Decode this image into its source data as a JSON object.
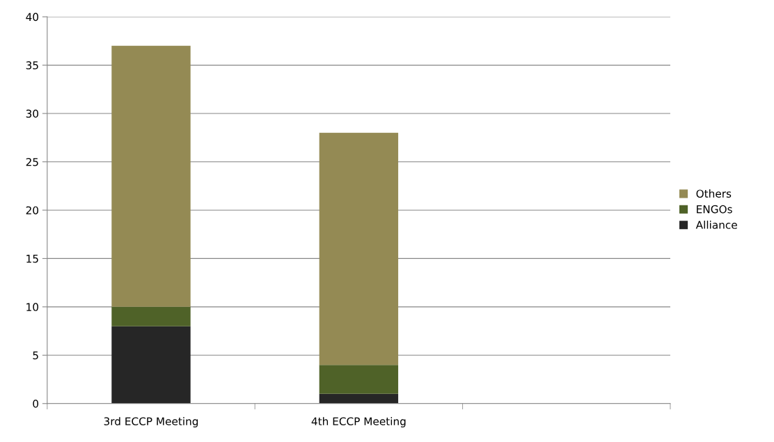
{
  "chart_data": {
    "type": "bar",
    "stacked": true,
    "categories": [
      "3rd ECCP Meeting",
      "4th ECCP Meeting",
      null
    ],
    "series": [
      {
        "name": "Alliance",
        "color": "#262626",
        "values": [
          8,
          1,
          null
        ]
      },
      {
        "name": "ENGOs",
        "color": "#4f6228",
        "values": [
          2,
          3,
          null
        ]
      },
      {
        "name": "Others",
        "color": "#948a54",
        "values": [
          27,
          24,
          null
        ]
      }
    ],
    "ylim": [
      0,
      40
    ],
    "yticks": [
      0,
      5,
      10,
      15,
      20,
      25,
      30,
      35,
      40
    ],
    "grid": "y",
    "legend": "right"
  }
}
